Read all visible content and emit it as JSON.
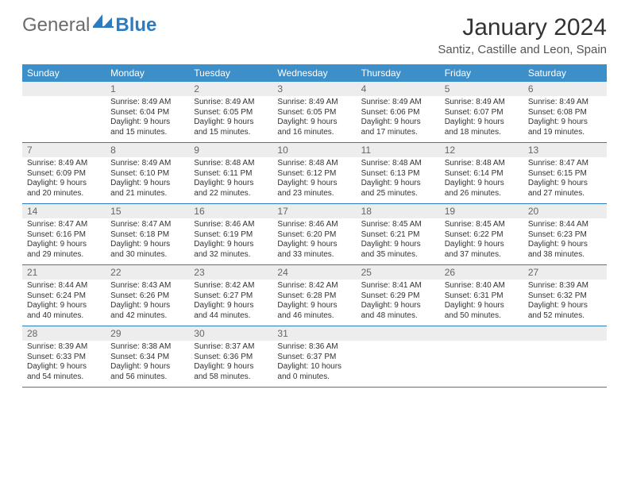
{
  "logo": {
    "part1": "General",
    "part2": "Blue"
  },
  "title": "January 2024",
  "location": "Santiz, Castille and Leon, Spain",
  "colors": {
    "header_bg": "#3d8fc9",
    "header_text": "#ffffff",
    "daynum_bg": "#ededed",
    "daynum_text": "#666666",
    "border": "#2d7cbf",
    "body_text": "#333333"
  },
  "weekdays": [
    "Sunday",
    "Monday",
    "Tuesday",
    "Wednesday",
    "Thursday",
    "Friday",
    "Saturday"
  ],
  "weeks": [
    [
      null,
      {
        "n": "1",
        "sr": "8:49 AM",
        "ss": "6:04 PM",
        "dl": "9 hours and 15 minutes."
      },
      {
        "n": "2",
        "sr": "8:49 AM",
        "ss": "6:05 PM",
        "dl": "9 hours and 15 minutes."
      },
      {
        "n": "3",
        "sr": "8:49 AM",
        "ss": "6:05 PM",
        "dl": "9 hours and 16 minutes."
      },
      {
        "n": "4",
        "sr": "8:49 AM",
        "ss": "6:06 PM",
        "dl": "9 hours and 17 minutes."
      },
      {
        "n": "5",
        "sr": "8:49 AM",
        "ss": "6:07 PM",
        "dl": "9 hours and 18 minutes."
      },
      {
        "n": "6",
        "sr": "8:49 AM",
        "ss": "6:08 PM",
        "dl": "9 hours and 19 minutes."
      }
    ],
    [
      {
        "n": "7",
        "sr": "8:49 AM",
        "ss": "6:09 PM",
        "dl": "9 hours and 20 minutes."
      },
      {
        "n": "8",
        "sr": "8:49 AM",
        "ss": "6:10 PM",
        "dl": "9 hours and 21 minutes."
      },
      {
        "n": "9",
        "sr": "8:48 AM",
        "ss": "6:11 PM",
        "dl": "9 hours and 22 minutes."
      },
      {
        "n": "10",
        "sr": "8:48 AM",
        "ss": "6:12 PM",
        "dl": "9 hours and 23 minutes."
      },
      {
        "n": "11",
        "sr": "8:48 AM",
        "ss": "6:13 PM",
        "dl": "9 hours and 25 minutes."
      },
      {
        "n": "12",
        "sr": "8:48 AM",
        "ss": "6:14 PM",
        "dl": "9 hours and 26 minutes."
      },
      {
        "n": "13",
        "sr": "8:47 AM",
        "ss": "6:15 PM",
        "dl": "9 hours and 27 minutes."
      }
    ],
    [
      {
        "n": "14",
        "sr": "8:47 AM",
        "ss": "6:16 PM",
        "dl": "9 hours and 29 minutes."
      },
      {
        "n": "15",
        "sr": "8:47 AM",
        "ss": "6:18 PM",
        "dl": "9 hours and 30 minutes."
      },
      {
        "n": "16",
        "sr": "8:46 AM",
        "ss": "6:19 PM",
        "dl": "9 hours and 32 minutes."
      },
      {
        "n": "17",
        "sr": "8:46 AM",
        "ss": "6:20 PM",
        "dl": "9 hours and 33 minutes."
      },
      {
        "n": "18",
        "sr": "8:45 AM",
        "ss": "6:21 PM",
        "dl": "9 hours and 35 minutes."
      },
      {
        "n": "19",
        "sr": "8:45 AM",
        "ss": "6:22 PM",
        "dl": "9 hours and 37 minutes."
      },
      {
        "n": "20",
        "sr": "8:44 AM",
        "ss": "6:23 PM",
        "dl": "9 hours and 38 minutes."
      }
    ],
    [
      {
        "n": "21",
        "sr": "8:44 AM",
        "ss": "6:24 PM",
        "dl": "9 hours and 40 minutes."
      },
      {
        "n": "22",
        "sr": "8:43 AM",
        "ss": "6:26 PM",
        "dl": "9 hours and 42 minutes."
      },
      {
        "n": "23",
        "sr": "8:42 AM",
        "ss": "6:27 PM",
        "dl": "9 hours and 44 minutes."
      },
      {
        "n": "24",
        "sr": "8:42 AM",
        "ss": "6:28 PM",
        "dl": "9 hours and 46 minutes."
      },
      {
        "n": "25",
        "sr": "8:41 AM",
        "ss": "6:29 PM",
        "dl": "9 hours and 48 minutes."
      },
      {
        "n": "26",
        "sr": "8:40 AM",
        "ss": "6:31 PM",
        "dl": "9 hours and 50 minutes."
      },
      {
        "n": "27",
        "sr": "8:39 AM",
        "ss": "6:32 PM",
        "dl": "9 hours and 52 minutes."
      }
    ],
    [
      {
        "n": "28",
        "sr": "8:39 AM",
        "ss": "6:33 PM",
        "dl": "9 hours and 54 minutes."
      },
      {
        "n": "29",
        "sr": "8:38 AM",
        "ss": "6:34 PM",
        "dl": "9 hours and 56 minutes."
      },
      {
        "n": "30",
        "sr": "8:37 AM",
        "ss": "6:36 PM",
        "dl": "9 hours and 58 minutes."
      },
      {
        "n": "31",
        "sr": "8:36 AM",
        "ss": "6:37 PM",
        "dl": "10 hours and 0 minutes."
      },
      null,
      null,
      null
    ]
  ],
  "labels": {
    "sunrise": "Sunrise:",
    "sunset": "Sunset:",
    "daylight": "Daylight:"
  }
}
